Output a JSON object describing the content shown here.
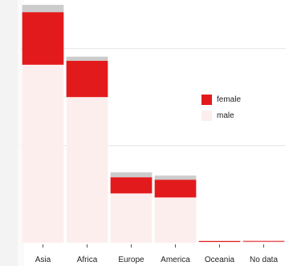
{
  "chart_data": {
    "type": "bar",
    "stacked": true,
    "categories": [
      "Asia",
      "Africa",
      "Europe",
      "America",
      "Oceania",
      "No data"
    ],
    "series": [
      {
        "name": "male",
        "color": "#fdeeee",
        "values": [
          22,
          18,
          6.1,
          5.6,
          0.1,
          0.15
        ]
      },
      {
        "name": "female",
        "color": "#e31a1c",
        "values": [
          6.5,
          4.5,
          2.0,
          2.2,
          0.12,
          0.08
        ]
      }
    ],
    "remainder": {
      "color": "#cccccc",
      "values": [
        0.9,
        0.5,
        0.6,
        0.5,
        0,
        0
      ]
    },
    "ylim": [
      0,
      30
    ],
    "gridlines": [
      12,
      24
    ],
    "grid": true,
    "legend": {
      "position": "right",
      "entries": [
        "female",
        "male"
      ]
    },
    "title": "",
    "xlabel": "",
    "ylabel": ""
  }
}
